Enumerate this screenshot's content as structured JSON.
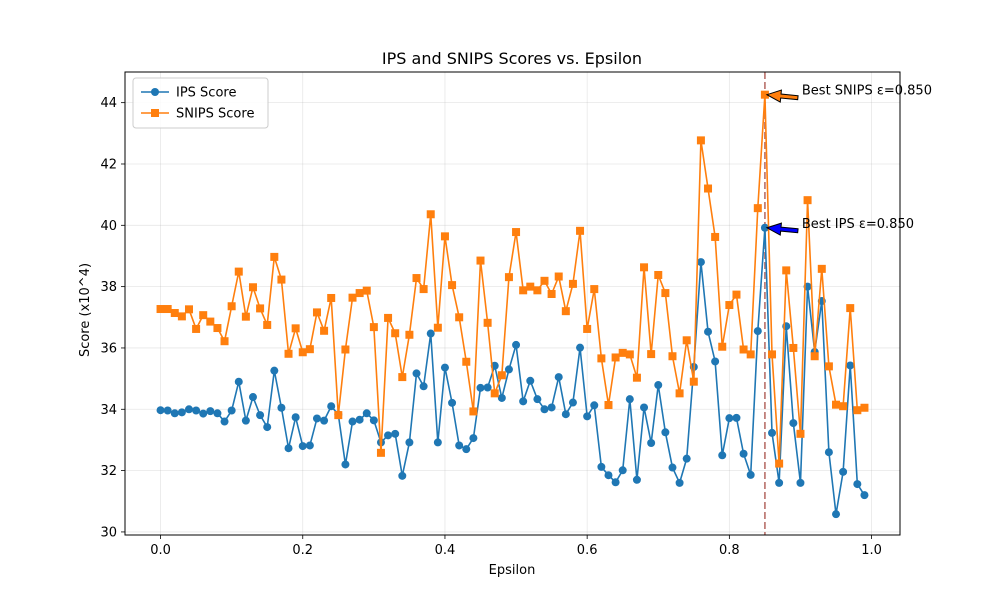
{
  "chart_data": {
    "type": "line",
    "title": "IPS and SNIPS Scores vs. Epsilon",
    "xlabel": "Epsilon",
    "ylabel": "Score (x10^4)",
    "xlim": [
      -0.05,
      1.04
    ],
    "ylim": [
      29.9,
      45.0
    ],
    "xticks": [
      "0.0",
      "0.2",
      "0.4",
      "0.6",
      "0.8",
      "1.0"
    ],
    "xtick_values": [
      0.0,
      0.2,
      0.4,
      0.6,
      0.8,
      1.0
    ],
    "yticks": [
      "30",
      "32",
      "34",
      "36",
      "38",
      "40",
      "42",
      "44"
    ],
    "ytick_values": [
      30,
      32,
      34,
      36,
      38,
      40,
      42,
      44
    ],
    "grid": true,
    "legend_position": "top-left",
    "x": [
      0.0,
      0.01,
      0.02,
      0.03,
      0.04,
      0.05,
      0.06,
      0.07,
      0.08,
      0.09,
      0.1,
      0.11,
      0.12,
      0.13,
      0.14,
      0.15,
      0.16,
      0.17,
      0.18,
      0.19,
      0.2,
      0.21,
      0.22,
      0.23,
      0.24,
      0.25,
      0.26,
      0.27,
      0.28,
      0.29,
      0.3,
      0.31,
      0.32,
      0.33,
      0.34,
      0.35,
      0.36,
      0.37,
      0.38,
      0.39,
      0.4,
      0.41,
      0.42,
      0.43,
      0.44,
      0.45,
      0.46,
      0.47,
      0.48,
      0.49,
      0.5,
      0.51,
      0.52,
      0.53,
      0.54,
      0.55,
      0.56,
      0.57,
      0.58,
      0.59,
      0.6,
      0.61,
      0.62,
      0.63,
      0.64,
      0.65,
      0.66,
      0.67,
      0.68,
      0.69,
      0.7,
      0.71,
      0.72,
      0.73,
      0.74,
      0.75,
      0.76,
      0.77,
      0.78,
      0.79,
      0.8,
      0.81,
      0.82,
      0.83,
      0.84,
      0.85,
      0.86,
      0.87,
      0.88,
      0.89,
      0.9,
      0.91,
      0.92,
      0.93,
      0.94,
      0.95,
      0.96,
      0.97,
      0.98,
      0.99
    ],
    "series": [
      {
        "name": "IPS Score",
        "color": "#1f77b4",
        "marker": "circle",
        "values": [
          33.97,
          33.96,
          33.87,
          33.9,
          34.0,
          33.96,
          33.86,
          33.94,
          33.87,
          33.6,
          33.96,
          34.9,
          33.63,
          34.4,
          33.81,
          33.42,
          35.26,
          34.05,
          32.73,
          33.74,
          32.8,
          32.82,
          33.7,
          33.63,
          34.1,
          33.83,
          32.2,
          33.6,
          33.66,
          33.87,
          33.64,
          32.92,
          33.15,
          33.2,
          31.83,
          32.92,
          35.17,
          34.75,
          36.47,
          32.92,
          35.36,
          34.21,
          32.82,
          32.7,
          33.06,
          34.7,
          34.71,
          35.42,
          34.37,
          35.3,
          36.1,
          34.26,
          34.93,
          34.33,
          34.0,
          34.06,
          35.05,
          33.84,
          34.22,
          36.01,
          33.77,
          34.13,
          32.12,
          31.85,
          31.62,
          32.01,
          34.33,
          31.7,
          34.06,
          32.9,
          34.79,
          33.25,
          32.1,
          31.6,
          32.39,
          35.38,
          38.8,
          36.53,
          35.56,
          32.5,
          33.71,
          33.72,
          32.55,
          31.86,
          36.55,
          39.92,
          33.23,
          31.6,
          36.71,
          33.55,
          31.6,
          38.0,
          35.87,
          37.53,
          32.6,
          30.58,
          31.96,
          35.43,
          31.56,
          31.2
        ]
      },
      {
        "name": "SNIPS Score",
        "color": "#ff7f0e",
        "marker": "square",
        "values": [
          37.27,
          37.27,
          37.14,
          37.03,
          37.26,
          36.62,
          37.07,
          36.86,
          36.65,
          36.22,
          37.36,
          38.49,
          37.02,
          37.98,
          37.29,
          36.75,
          38.97,
          38.23,
          35.81,
          36.64,
          35.86,
          35.96,
          37.16,
          36.56,
          37.63,
          33.81,
          35.95,
          37.64,
          37.79,
          37.87,
          36.68,
          32.58,
          36.98,
          36.48,
          35.05,
          36.43,
          38.28,
          37.92,
          40.36,
          36.66,
          39.64,
          38.05,
          37.0,
          35.55,
          33.93,
          38.85,
          36.82,
          34.52,
          35.11,
          38.31,
          39.78,
          37.88,
          38.0,
          37.88,
          38.19,
          37.76,
          38.33,
          37.2,
          38.09,
          39.82,
          36.62,
          37.92,
          35.66,
          34.14,
          35.69,
          35.84,
          35.79,
          35.03,
          38.63,
          35.8,
          38.38,
          37.79,
          35.73,
          34.52,
          36.25,
          34.9,
          42.77,
          41.2,
          39.62,
          36.04,
          37.4,
          37.74,
          35.95,
          35.79,
          40.56,
          44.26,
          35.79,
          32.23,
          38.53,
          36.0,
          33.2,
          40.82,
          35.73,
          38.58,
          35.4,
          34.15,
          34.1,
          37.3,
          33.97,
          34.05
        ]
      }
    ],
    "vline": {
      "x": 0.85,
      "color": "#c0807a"
    },
    "annotations": [
      {
        "text": "Best SNIPS ε=0.850",
        "point_x": 0.85,
        "point_y": 44.26,
        "text_x": 0.902,
        "text_y": 44.26,
        "arrow_color": "#ff7f0e"
      },
      {
        "text": "Best IPS ε=0.850",
        "point_x": 0.85,
        "point_y": 39.92,
        "text_x": 0.902,
        "text_y": 39.92,
        "arrow_color": "#0000ff"
      }
    ]
  }
}
